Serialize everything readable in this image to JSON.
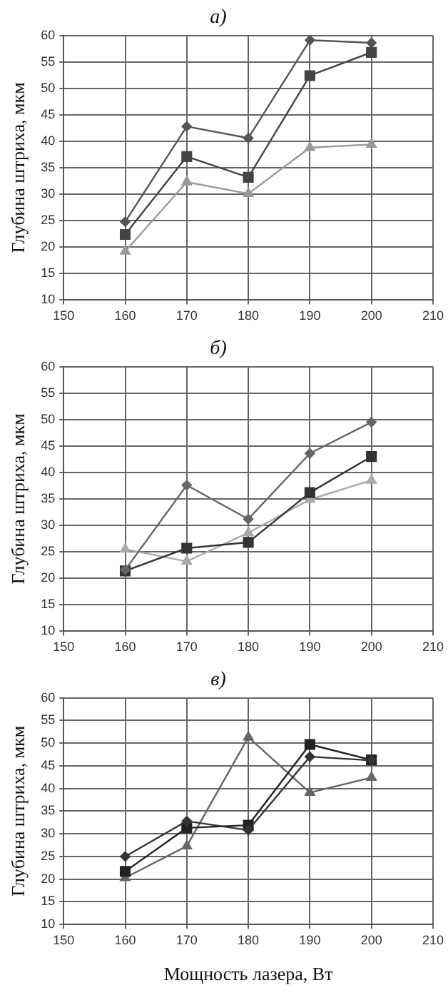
{
  "chart_data": [
    {
      "type": "line",
      "title": "а)",
      "ylabel": "Глубина штриха, мкм",
      "x": [
        160,
        170,
        180,
        190,
        200
      ],
      "xlim": [
        150,
        210
      ],
      "xticks": [
        150,
        160,
        170,
        180,
        190,
        200,
        210
      ],
      "ylim": [
        10,
        60
      ],
      "yticks": [
        10,
        15,
        20,
        25,
        30,
        35,
        40,
        45,
        50,
        55,
        60
      ],
      "grid": true,
      "legend": false,
      "series": [
        {
          "color": "#555555",
          "marker": "diamond",
          "values": [
            24.8,
            42.8,
            40.6,
            59.1,
            58.6
          ]
        },
        {
          "color": "#444444",
          "marker": "square",
          "values": [
            22.4,
            37.1,
            33.2,
            52.4,
            56.8
          ]
        },
        {
          "color": "#999999",
          "marker": "triangle",
          "values": [
            19.2,
            32.3,
            30.1,
            38.8,
            39.4
          ]
        }
      ]
    },
    {
      "type": "line",
      "title": "б)",
      "ylabel": "Глубина штриха, мкм",
      "x": [
        160,
        170,
        180,
        190,
        200
      ],
      "xlim": [
        150,
        210
      ],
      "xticks": [
        150,
        160,
        170,
        180,
        190,
        200,
        210
      ],
      "ylim": [
        10,
        60
      ],
      "yticks": [
        10,
        15,
        20,
        25,
        30,
        35,
        40,
        45,
        50,
        55,
        60
      ],
      "grid": true,
      "legend": false,
      "series": [
        {
          "color": "#666666",
          "marker": "diamond",
          "values": [
            21.6,
            37.6,
            31.2,
            43.6,
            49.5
          ]
        },
        {
          "color": "#333333",
          "marker": "square",
          "values": [
            21.4,
            25.7,
            26.8,
            36.2,
            43.0
          ]
        },
        {
          "color": "#aaaaaa",
          "marker": "triangle",
          "values": [
            25.5,
            23.2,
            28.6,
            34.9,
            38.5
          ]
        }
      ]
    },
    {
      "type": "line",
      "title": "в)",
      "xlabel": "Мощность лазера, Вт",
      "ylabel": "Глубина штриха, мкм",
      "x": [
        160,
        170,
        180,
        190,
        200
      ],
      "xlim": [
        150,
        210
      ],
      "xticks": [
        150,
        160,
        170,
        180,
        190,
        200,
        210
      ],
      "ylim": [
        10,
        60
      ],
      "yticks": [
        10,
        15,
        20,
        25,
        30,
        35,
        40,
        45,
        50,
        55,
        60
      ],
      "grid": true,
      "legend": false,
      "series": [
        {
          "color": "#333333",
          "marker": "diamond",
          "values": [
            25.0,
            32.8,
            30.8,
            47.0,
            46.2
          ]
        },
        {
          "color": "#222222",
          "marker": "square",
          "values": [
            21.7,
            31.3,
            31.9,
            49.7,
            46.3
          ]
        },
        {
          "color": "#666666",
          "marker": "triangle",
          "values": [
            20.3,
            27.3,
            51.3,
            39.1,
            42.4
          ]
        }
      ]
    }
  ]
}
